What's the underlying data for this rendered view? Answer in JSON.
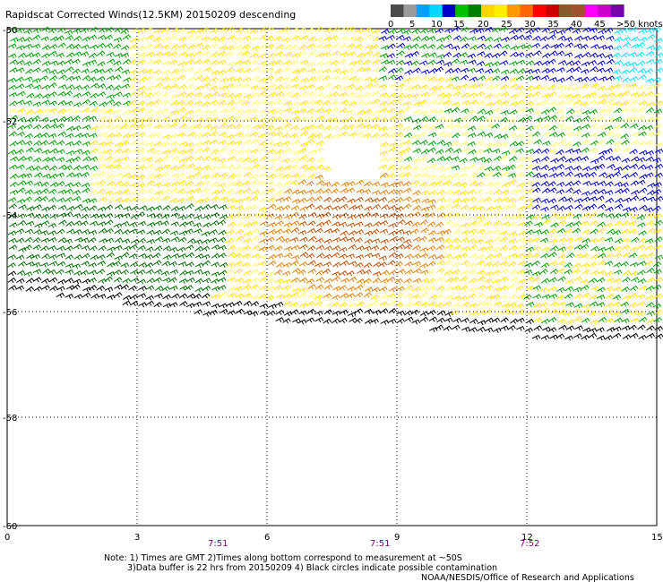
{
  "title": "Rapidscat Corrected Winds(12.5KM) 20150209 descending",
  "legend": {
    "labels": [
      "0",
      "5",
      "10",
      "15",
      "20",
      "25",
      "30",
      "35",
      "40",
      "45",
      ">50 knots"
    ],
    "colors": [
      "#4a4a4a",
      "#9a9a9a",
      "#00a0ff",
      "#00d8ff",
      "#0000c8",
      "#00c000",
      "#008000",
      "#ffd700",
      "#ffee00",
      "#ff9900",
      "#ff6600",
      "#ff0000",
      "#cc0000",
      "#8b5a2b",
      "#a0522d",
      "#ff00ff",
      "#cc00cc",
      "#7700aa"
    ]
  },
  "map": {
    "lat_labels": [
      "-50",
      "-52",
      "-54",
      "-56",
      "-58",
      "-60"
    ],
    "lon_labels": [
      "0",
      "3",
      "6",
      "9",
      "12",
      "15"
    ],
    "pass_times": [
      "7:51",
      "7:51",
      "7:52"
    ],
    "speed_colors": {
      "cyan": "#00e0ff",
      "blue": "#0000c8",
      "green": "#00a000",
      "dark_green": "#007000",
      "yellow": "#ffe000",
      "light_yellow": "#ffff60",
      "orange": "#e08000",
      "dark_orange": "#c05000",
      "black": "#000000"
    }
  },
  "notes": {
    "line1": "Note: 1) Times are GMT 2)Times along bottom correspond to measurement at ~50S",
    "line2": "3)Data buffer is 22 hrs from 20150209 4) Black circles indicate possible contamination",
    "line3": "NOAA/NESDIS/Office of Research and Applications"
  }
}
